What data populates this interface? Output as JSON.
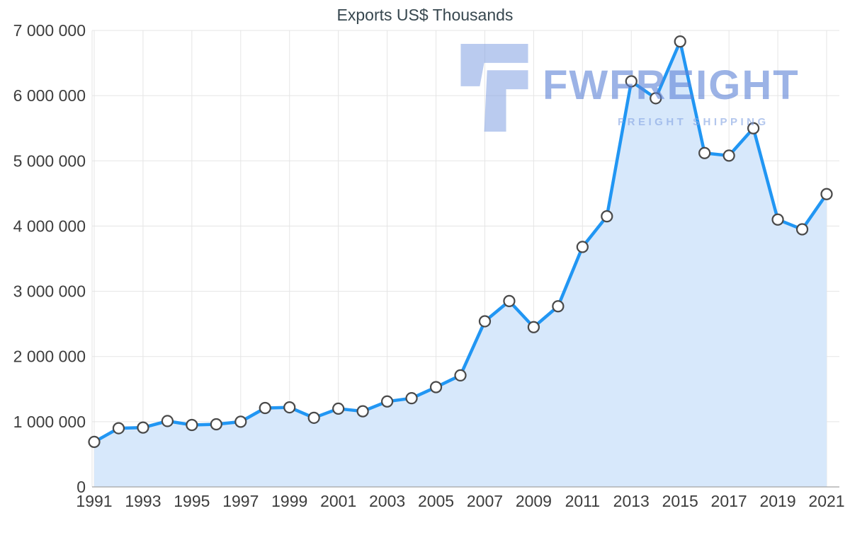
{
  "chart_data": {
    "type": "line",
    "title": "Exports US$ Thousands",
    "x": [
      1991,
      1992,
      1993,
      1994,
      1995,
      1996,
      1997,
      1998,
      1999,
      2000,
      2001,
      2002,
      2003,
      2004,
      2005,
      2006,
      2007,
      2008,
      2009,
      2010,
      2011,
      2012,
      2013,
      2014,
      2015,
      2016,
      2017,
      2018,
      2019,
      2020,
      2021
    ],
    "values": [
      690000,
      900000,
      910000,
      1010000,
      950000,
      960000,
      1000000,
      1210000,
      1220000,
      1060000,
      1200000,
      1160000,
      1310000,
      1360000,
      1530000,
      1710000,
      2540000,
      2850000,
      2450000,
      2770000,
      3680000,
      4150000,
      6220000,
      5960000,
      6830000,
      5120000,
      5080000,
      5500000,
      4100000,
      3950000,
      4490000
    ],
    "xlabel": "",
    "ylabel": "",
    "ylim": [
      0,
      7000000
    ],
    "y_tick_interval": 1000000,
    "x_tick_step": 2,
    "grid": "on",
    "legend": "none",
    "marker": "circle",
    "area_fill": true,
    "colors": {
      "line": "#2196f3",
      "area": "#d7e8fb",
      "marker_fill": "#ffffff",
      "marker_stroke": "#4a4a4a",
      "grid": "#e5e5e5",
      "axis": "#a3a3a3",
      "tick_label": "#3d3d3d",
      "title": "#37474f"
    }
  },
  "watermark": {
    "brand": "FWFREIGHT",
    "tagline": "FREIGHT SHIPPING",
    "logo_color": "rgba(130, 160, 225, 0.55)"
  }
}
